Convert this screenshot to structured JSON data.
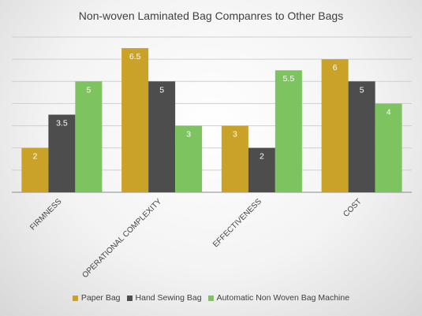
{
  "chart_data": {
    "type": "bar",
    "title": "Non-woven Laminated Bag Companres to Other Bags",
    "categories": [
      "FIRMNESS",
      "OPERATIONAL COMPLEXITY",
      "EFFECTIVENESS",
      "COST"
    ],
    "series": [
      {
        "name": "Paper Bag",
        "values": [
          2,
          6.5,
          3,
          6
        ],
        "color": "#c9a227"
      },
      {
        "name": "Hand Sewing Bag",
        "values": [
          3.5,
          5,
          2,
          5
        ],
        "color": "#4d4d4d"
      },
      {
        "name": "Automatic Non Woven Bag Machine",
        "values": [
          5,
          3,
          5.5,
          4
        ],
        "color": "#7dc35f"
      }
    ],
    "ylim": [
      0,
      7
    ],
    "ytick_step": 1,
    "ytick_labels_shown": false,
    "grid": true,
    "data_labels": true,
    "legend_position": "bottom",
    "xlabel": "",
    "ylabel": ""
  }
}
